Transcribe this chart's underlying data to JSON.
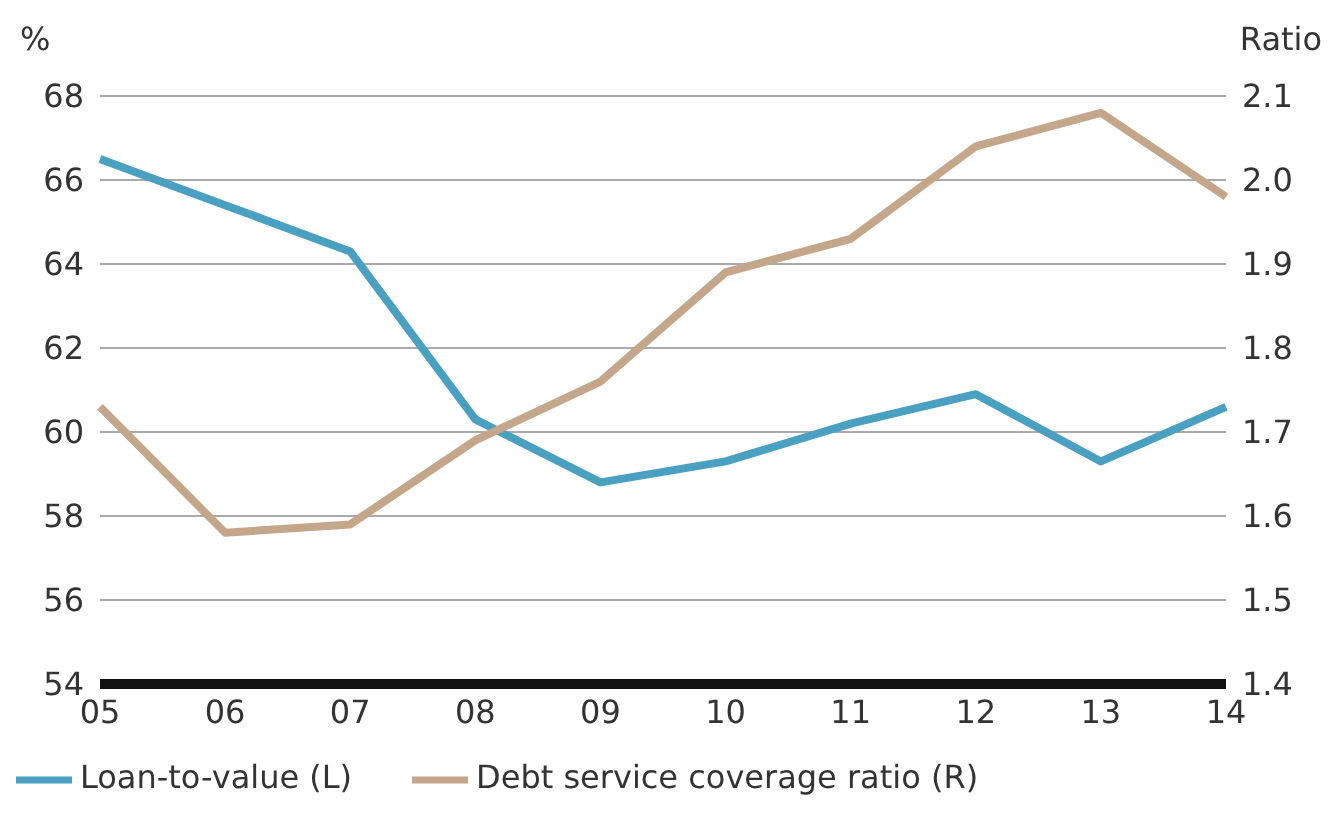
{
  "chart_data": {
    "type": "line",
    "ylabel": "%",
    "y2label": "Ratio",
    "categories": [
      "05",
      "06",
      "07",
      "08",
      "09",
      "10",
      "11",
      "12",
      "13",
      "14"
    ],
    "series": [
      {
        "name": "Loan-to-value (L)",
        "color": "#4aa0c0",
        "values": [
          66.5,
          65.4,
          64.3,
          60.3,
          58.8,
          59.3,
          60.2,
          60.9,
          59.3,
          60.6
        ]
      },
      {
        "name": "Debt service coverage ratio (R)",
        "color": "#c4a68a",
        "axis": "y2",
        "values": [
          1.73,
          1.58,
          1.59,
          1.69,
          1.76,
          1.89,
          1.93,
          2.04,
          2.08,
          1.98
        ]
      }
    ],
    "ylim": [
      54,
      68
    ],
    "yticks": [
      54,
      56,
      58,
      60,
      62,
      64,
      66,
      68
    ],
    "y2lim": [
      1.4,
      2.1
    ],
    "y2ticks": [
      1.4,
      1.5,
      1.6,
      1.7,
      1.8,
      1.9,
      {
        "value": 2,
        "label": "2.0"
      },
      2.1
    ],
    "grid": "y",
    "legend": "bottom left",
    "marker": "none",
    "line_style": "solid"
  }
}
